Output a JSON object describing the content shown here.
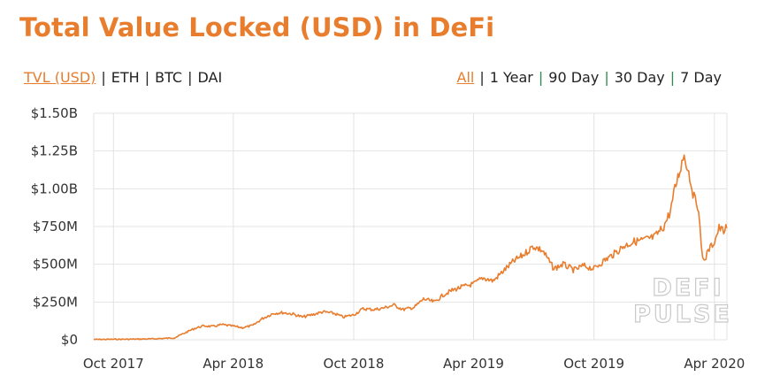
{
  "header": {
    "title": "Total Value Locked (USD) in DeFi"
  },
  "metric_tabs": [
    {
      "label": "TVL (USD)",
      "active": true
    },
    {
      "label": "ETH",
      "active": false
    },
    {
      "label": "BTC",
      "active": false
    },
    {
      "label": "DAI",
      "active": false
    }
  ],
  "range_tabs": [
    {
      "label": "All",
      "active": true
    },
    {
      "label": "1 Year",
      "active": false
    },
    {
      "label": "90 Day",
      "active": false
    },
    {
      "label": "30 Day",
      "active": false
    },
    {
      "label": "7 Day",
      "active": false
    }
  ],
  "watermark": [
    "DEFI",
    "PULSE"
  ],
  "colors": {
    "accent": "#e97d2e",
    "grid": "#e3e3e3",
    "text": "#333333",
    "separator_green": "#2d8a4a"
  },
  "chart_data": {
    "type": "line",
    "title": "Total Value Locked (USD) in DeFi",
    "xlabel": "",
    "ylabel": "",
    "grid": true,
    "legend": "none",
    "xlim": [
      "2017-09-01",
      "2020-04-20"
    ],
    "ylim": [
      0,
      1500000000
    ],
    "x_ticks": [
      {
        "date": "2017-10-01",
        "label": "Oct 2017"
      },
      {
        "date": "2018-04-01",
        "label": "Apr 2018"
      },
      {
        "date": "2018-10-01",
        "label": "Oct 2018"
      },
      {
        "date": "2019-04-01",
        "label": "Apr 2019"
      },
      {
        "date": "2019-10-01",
        "label": "Oct 2019"
      },
      {
        "date": "2020-04-01",
        "label": "Apr 2020"
      }
    ],
    "y_ticks": [
      {
        "value": 0,
        "label": "$0"
      },
      {
        "value": 250000000,
        "label": "$250M"
      },
      {
        "value": 500000000,
        "label": "$500M"
      },
      {
        "value": 750000000,
        "label": "$750M"
      },
      {
        "value": 1000000000,
        "label": "$1.00B"
      },
      {
        "value": 1250000000,
        "label": "$1.25B"
      },
      {
        "value": 1500000000,
        "label": "$1.50B"
      }
    ],
    "series": [
      {
        "name": "",
        "color": "#e97d2e",
        "points": [
          [
            "2017-09-01",
            2000000
          ],
          [
            "2017-10-01",
            3000000
          ],
          [
            "2017-11-01",
            4000000
          ],
          [
            "2017-12-01",
            6000000
          ],
          [
            "2018-01-01",
            12000000
          ],
          [
            "2018-01-15",
            40000000
          ],
          [
            "2018-02-01",
            75000000
          ],
          [
            "2018-02-15",
            92000000
          ],
          [
            "2018-03-01",
            88000000
          ],
          [
            "2018-03-15",
            100000000
          ],
          [
            "2018-04-01",
            90000000
          ],
          [
            "2018-04-15",
            80000000
          ],
          [
            "2018-05-01",
            95000000
          ],
          [
            "2018-05-15",
            140000000
          ],
          [
            "2018-06-01",
            175000000
          ],
          [
            "2018-06-15",
            180000000
          ],
          [
            "2018-07-01",
            170000000
          ],
          [
            "2018-07-15",
            150000000
          ],
          [
            "2018-08-01",
            168000000
          ],
          [
            "2018-08-15",
            185000000
          ],
          [
            "2018-09-01",
            175000000
          ],
          [
            "2018-09-15",
            150000000
          ],
          [
            "2018-10-01",
            165000000
          ],
          [
            "2018-10-15",
            205000000
          ],
          [
            "2018-11-01",
            200000000
          ],
          [
            "2018-11-15",
            210000000
          ],
          [
            "2018-12-01",
            230000000
          ],
          [
            "2018-12-15",
            200000000
          ],
          [
            "2019-01-01",
            215000000
          ],
          [
            "2019-01-15",
            270000000
          ],
          [
            "2019-02-01",
            250000000
          ],
          [
            "2019-02-15",
            300000000
          ],
          [
            "2019-03-01",
            330000000
          ],
          [
            "2019-03-15",
            350000000
          ],
          [
            "2019-04-01",
            370000000
          ],
          [
            "2019-04-15",
            410000000
          ],
          [
            "2019-05-01",
            390000000
          ],
          [
            "2019-05-15",
            450000000
          ],
          [
            "2019-06-01",
            520000000
          ],
          [
            "2019-06-15",
            560000000
          ],
          [
            "2019-07-01",
            620000000
          ],
          [
            "2019-07-15",
            590000000
          ],
          [
            "2019-08-01",
            470000000
          ],
          [
            "2019-08-15",
            500000000
          ],
          [
            "2019-09-01",
            460000000
          ],
          [
            "2019-09-15",
            490000000
          ],
          [
            "2019-10-01",
            470000000
          ],
          [
            "2019-10-15",
            520000000
          ],
          [
            "2019-11-01",
            570000000
          ],
          [
            "2019-11-15",
            620000000
          ],
          [
            "2019-12-01",
            650000000
          ],
          [
            "2019-12-15",
            660000000
          ],
          [
            "2020-01-01",
            680000000
          ],
          [
            "2020-01-15",
            750000000
          ],
          [
            "2020-01-25",
            850000000
          ],
          [
            "2020-02-01",
            1000000000
          ],
          [
            "2020-02-10",
            1150000000
          ],
          [
            "2020-02-15",
            1230000000
          ],
          [
            "2020-02-22",
            1110000000
          ],
          [
            "2020-03-01",
            940000000
          ],
          [
            "2020-03-08",
            880000000
          ],
          [
            "2020-03-12",
            600000000
          ],
          [
            "2020-03-16",
            520000000
          ],
          [
            "2020-03-24",
            600000000
          ],
          [
            "2020-04-01",
            650000000
          ],
          [
            "2020-04-08",
            740000000
          ],
          [
            "2020-04-15",
            720000000
          ],
          [
            "2020-04-20",
            740000000
          ]
        ]
      }
    ]
  }
}
